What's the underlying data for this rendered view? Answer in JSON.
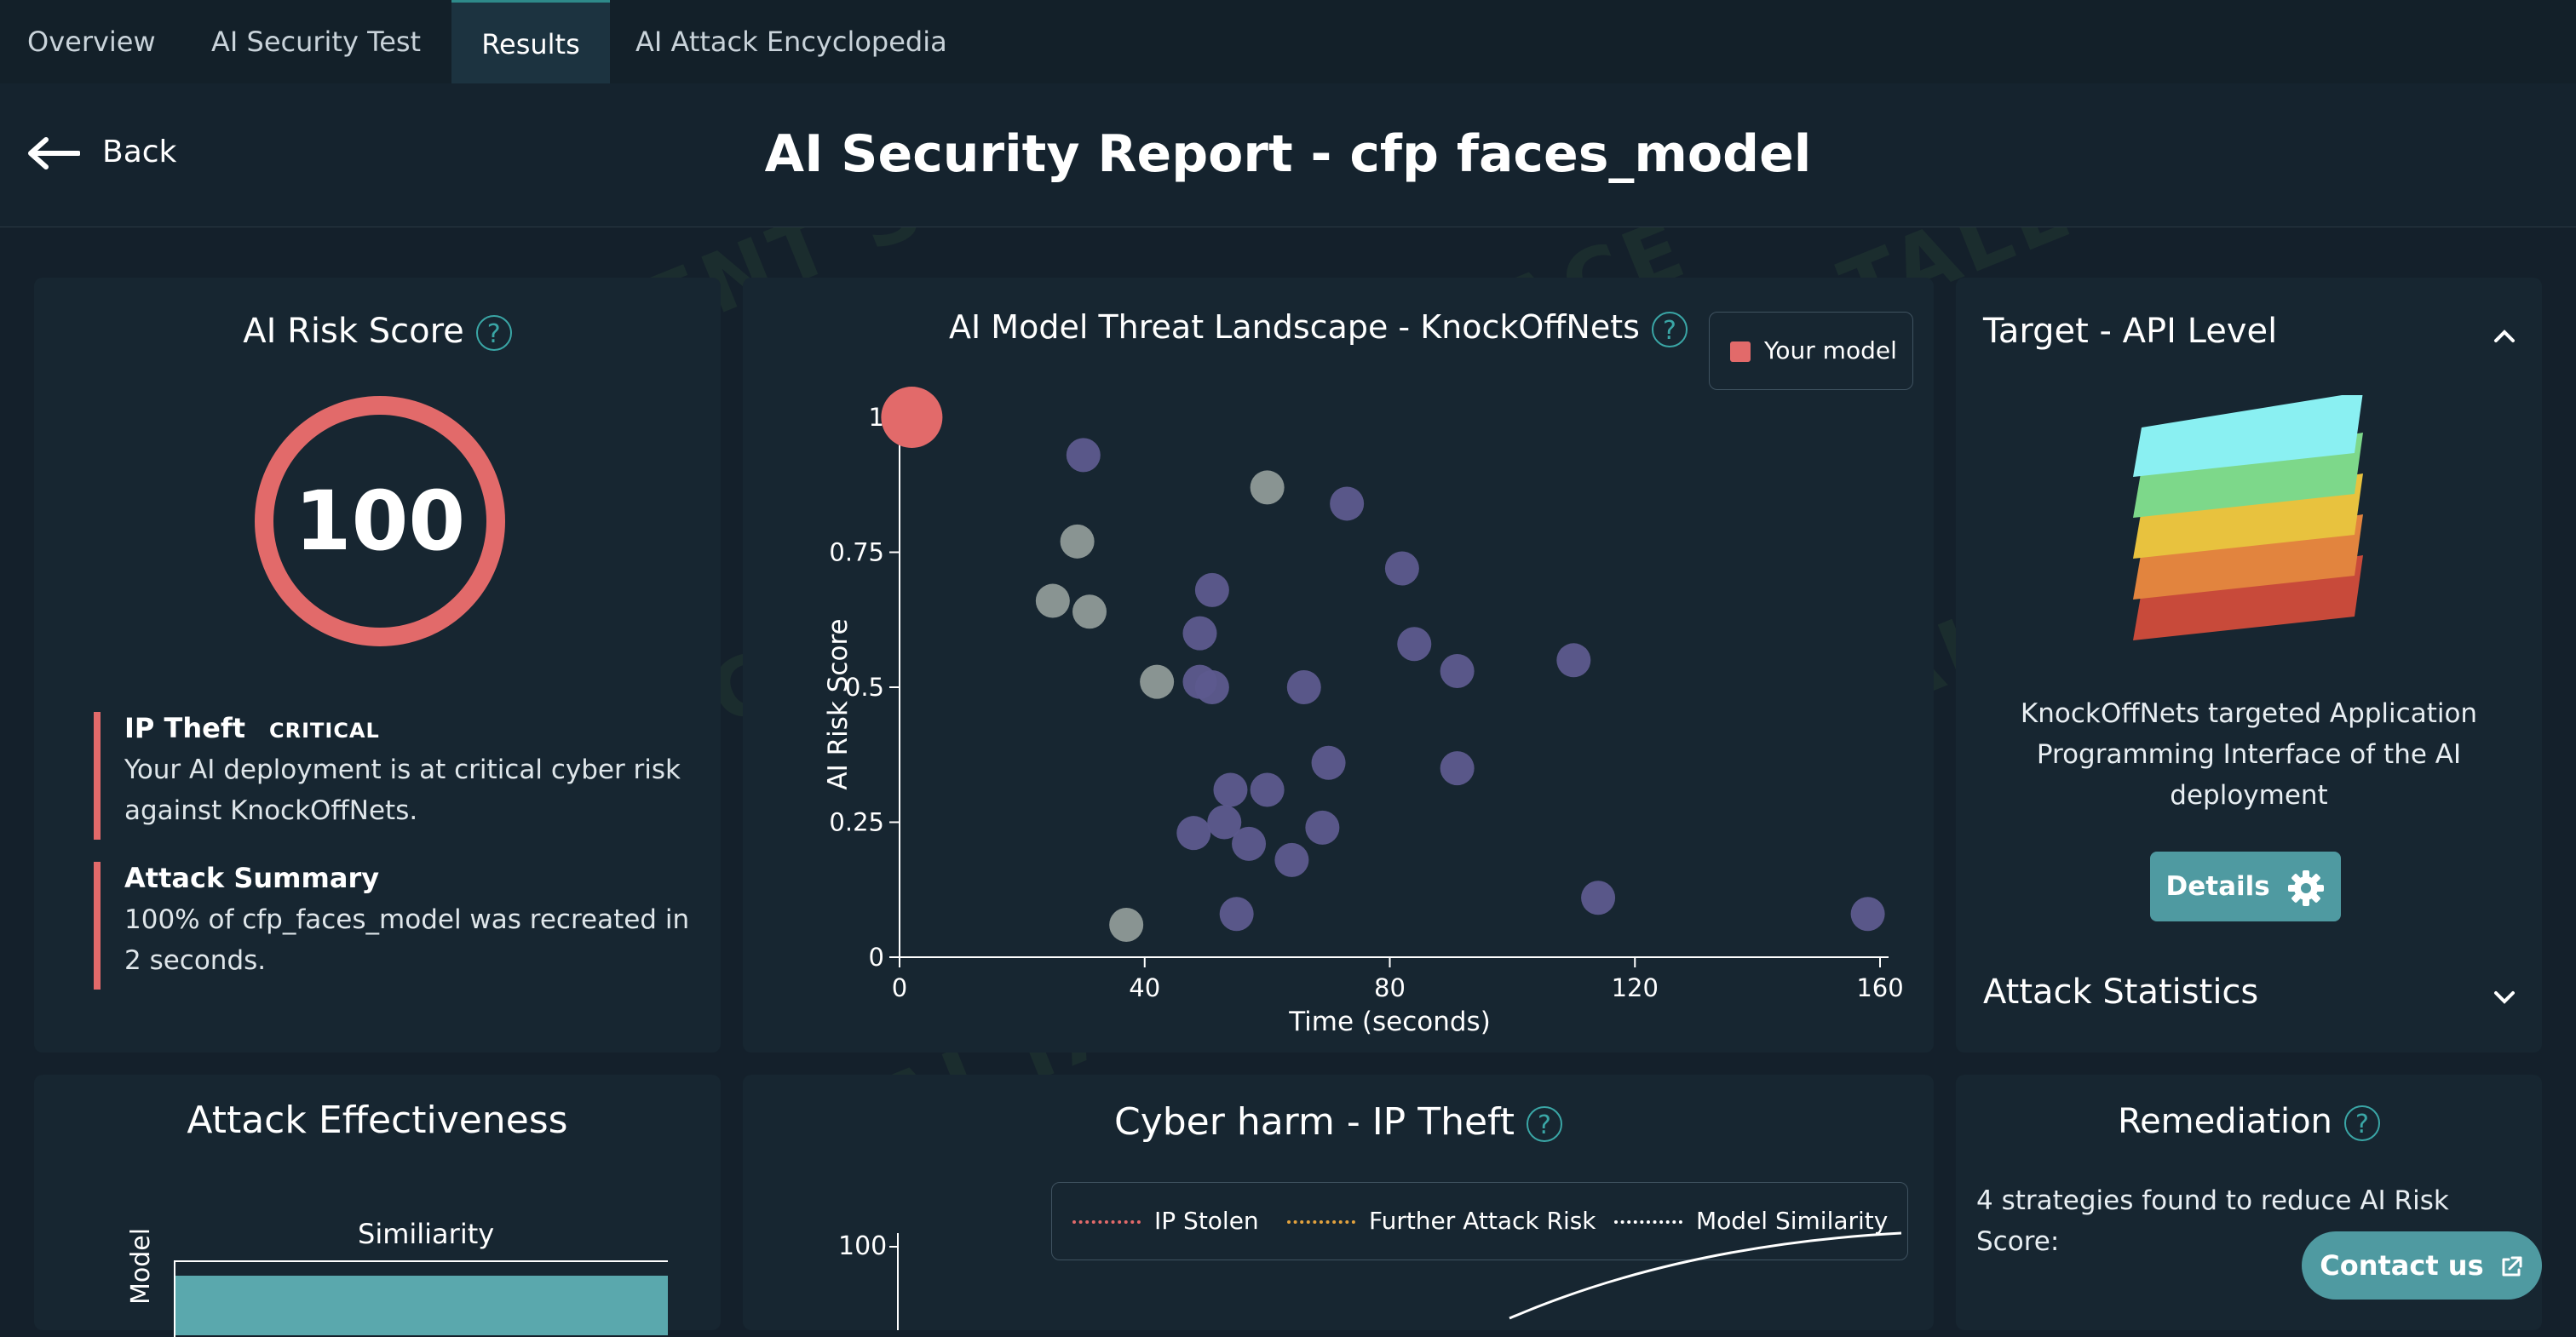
{
  "nav": {
    "tabs": [
      {
        "label": "Overview",
        "active": false
      },
      {
        "label": "AI Security Test",
        "active": false
      },
      {
        "label": "Results",
        "active": true
      },
      {
        "label": "AI Attack Encyclopedia",
        "active": false
      }
    ]
  },
  "header": {
    "back_label": "Back",
    "title": "AI Security Report - cfp faces_model"
  },
  "watermark_text": "AI TALENT SPACE",
  "risk_score": {
    "title": "AI Risk Score",
    "help": "?",
    "value": "100",
    "ring_color": "#e26a6a",
    "alerts": [
      {
        "title": "IP Theft",
        "badge": "CRITICAL",
        "body": "Your AI deployment is at critical cyber risk against KnockOffNets."
      },
      {
        "title": "Attack Summary",
        "badge": "",
        "body": "100% of cfp_faces_model was recreated in 2 seconds."
      }
    ]
  },
  "threat": {
    "title": "AI Model Threat Landscape - KnockOffNets",
    "help": "?",
    "legend_label": "Your model"
  },
  "chart_data": {
    "type": "scatter",
    "title": "AI Model Threat Landscape - KnockOffNets",
    "xlabel": "Time (seconds)",
    "ylabel": "AI Risk Score",
    "xlim": [
      0,
      160
    ],
    "ylim": [
      0,
      1
    ],
    "xticks": [
      "0",
      "40",
      "80",
      "120",
      "160"
    ],
    "yticks": [
      "0",
      "0.25",
      "0.5",
      "0.75",
      "1"
    ],
    "grid": false,
    "legend_placement": "top-right",
    "series": [
      {
        "name": "Your model",
        "color": "#e26a6a",
        "points": [
          [
            2,
            1.0
          ]
        ]
      },
      {
        "color": "#5d5a8e",
        "points": [
          [
            30,
            0.93
          ],
          [
            73,
            0.84
          ],
          [
            51,
            0.68
          ],
          [
            82,
            0.72
          ],
          [
            49,
            0.6
          ],
          [
            84,
            0.58
          ],
          [
            91,
            0.53
          ],
          [
            110,
            0.55
          ],
          [
            49,
            0.51
          ],
          [
            51,
            0.5
          ],
          [
            66,
            0.5
          ],
          [
            70,
            0.36
          ],
          [
            91,
            0.35
          ],
          [
            54,
            0.31
          ],
          [
            60,
            0.31
          ],
          [
            53,
            0.25
          ],
          [
            48,
            0.23
          ],
          [
            57,
            0.21
          ],
          [
            69,
            0.24
          ],
          [
            64,
            0.18
          ],
          [
            55,
            0.08
          ],
          [
            114,
            0.11
          ],
          [
            158,
            0.08
          ]
        ]
      },
      {
        "color": "#8f9a98",
        "points": [
          [
            60,
            0.87
          ],
          [
            29,
            0.77
          ],
          [
            25,
            0.66
          ],
          [
            31,
            0.64
          ],
          [
            42,
            0.51
          ],
          [
            37,
            0.06
          ]
        ]
      }
    ]
  },
  "target": {
    "title": "Target - API Level",
    "description": "KnockOffNets targeted Application Programming Interface of the AI deployment",
    "details_label": "Details",
    "stats_title": "Attack Statistics",
    "layer_colors": [
      "#c84a3a",
      "#e2843e",
      "#e8c23e",
      "#7dd88a",
      "#8af0f2"
    ]
  },
  "effectiveness": {
    "title": "Attack Effectiveness",
    "bar_title": "Similiarity",
    "axis_label": "Model"
  },
  "harm": {
    "title": "Cyber harm - IP Theft",
    "help": "?",
    "legend": [
      {
        "label": "IP Stolen",
        "color": "#e26a6a"
      },
      {
        "label": "Further Attack Risk",
        "color": "#e2a23e"
      },
      {
        "label": "Model Similarity",
        "color": "#ffffff"
      }
    ],
    "y_tick_top": "100"
  },
  "remediation": {
    "title": "Remediation",
    "help": "?",
    "text": "4 strategies found to reduce AI Risk Score:"
  },
  "contact_label": "Contact us"
}
